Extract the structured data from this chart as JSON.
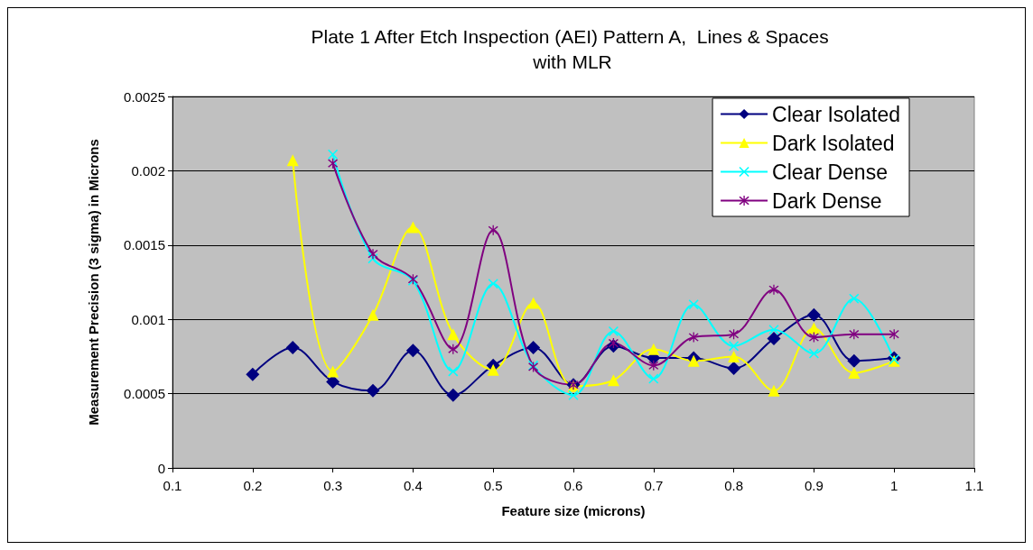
{
  "chart_data": {
    "type": "line",
    "title": "Plate 1 After Etch Inspection (AEI) Pattern A,  Lines & Spaces with MLR",
    "xlabel": "Feature size (microns)",
    "ylabel": "Measurement Precision (3 sigma) in Microns",
    "xlim": [
      0.1,
      1.1
    ],
    "xticks": [
      0.1,
      0.2,
      0.3,
      0.4,
      0.5,
      0.6,
      0.7,
      0.8,
      0.9,
      1,
      1.1
    ],
    "ylim": [
      0,
      0.0025
    ],
    "yticks": [
      0,
      0.0005,
      0.001,
      0.0015,
      0.002,
      0.0025
    ],
    "grid": "y",
    "legend": "top right",
    "series": [
      {
        "name": "Clear Isolated",
        "color": "#000080",
        "marker": "diamond",
        "x": [
          0.2,
          0.25,
          0.3,
          0.35,
          0.4,
          0.45,
          0.5,
          0.55,
          0.6,
          0.65,
          0.7,
          0.75,
          0.8,
          0.85,
          0.9,
          0.95,
          1
        ],
        "values": [
          0.00063,
          0.00081,
          0.00058,
          0.00052,
          0.00079,
          0.00049,
          0.00069,
          0.00081,
          0.00056,
          0.00082,
          0.00074,
          0.00074,
          0.00067,
          0.00087,
          0.00103,
          0.00072,
          0.00074
        ]
      },
      {
        "name": "Dark Isolated",
        "color": "#ffff00",
        "marker": "triangle",
        "x": [
          0.25,
          0.3,
          0.35,
          0.4,
          0.45,
          0.5,
          0.55,
          0.6,
          0.65,
          0.7,
          0.75,
          0.8,
          0.85,
          0.9,
          0.95,
          1
        ],
        "values": [
          0.00207,
          0.00065,
          0.00103,
          0.00162,
          0.0009,
          0.00066,
          0.00111,
          0.00055,
          0.00059,
          0.0008,
          0.00072,
          0.00075,
          0.00052,
          0.00094,
          0.00064,
          0.00072
        ]
      },
      {
        "name": "Clear Dense",
        "color": "#00ffff",
        "marker": "cross",
        "x": [
          0.3,
          0.35,
          0.4,
          0.45,
          0.5,
          0.55,
          0.6,
          0.65,
          0.7,
          0.75,
          0.8,
          0.85,
          0.9,
          0.95,
          1
        ],
        "values": [
          0.00211,
          0.00141,
          0.00126,
          0.00065,
          0.00124,
          0.00069,
          0.00049,
          0.00092,
          0.0006,
          0.0011,
          0.00082,
          0.00093,
          0.00077,
          0.00114,
          0.00073
        ]
      },
      {
        "name": "Dark Dense",
        "color": "#800080",
        "marker": "star",
        "x": [
          0.3,
          0.35,
          0.4,
          0.45,
          0.5,
          0.55,
          0.6,
          0.65,
          0.7,
          0.75,
          0.8,
          0.85,
          0.9,
          0.95,
          1
        ],
        "values": [
          0.00205,
          0.00144,
          0.00127,
          0.0008,
          0.0016,
          0.00068,
          0.00056,
          0.00084,
          0.00069,
          0.00088,
          0.0009,
          0.0012,
          0.00088,
          0.0009,
          0.0009
        ]
      }
    ]
  }
}
